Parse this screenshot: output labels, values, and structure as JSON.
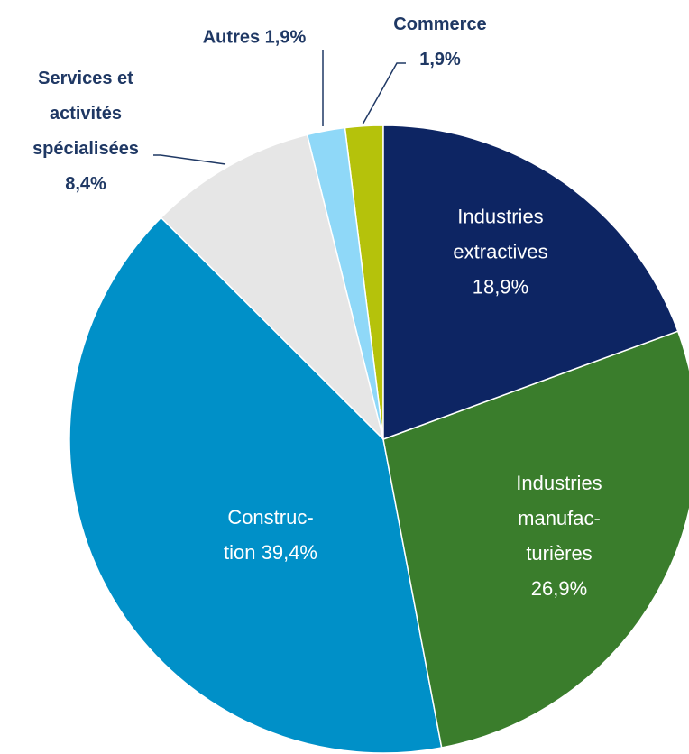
{
  "chart_data": {
    "type": "pie",
    "categories": [
      "Industries\nextractives",
      "Industries\nmanufac-\nturières",
      "Construc-\ntion",
      "Services et\nactivités\nspécialisées",
      "Autres",
      "Commerce"
    ],
    "values": [
      18.9,
      26.9,
      39.4,
      8.4,
      1.9,
      1.9
    ],
    "value_labels": [
      "18,9%",
      "26,9%",
      "39,4%",
      "8,4%",
      "1,9%",
      "1,9%"
    ],
    "colors": [
      "#0d2563",
      "#3a7d2c",
      "#0090c8",
      "#e6e6e6",
      "#8fd8f8",
      "#b5c20b"
    ]
  }
}
